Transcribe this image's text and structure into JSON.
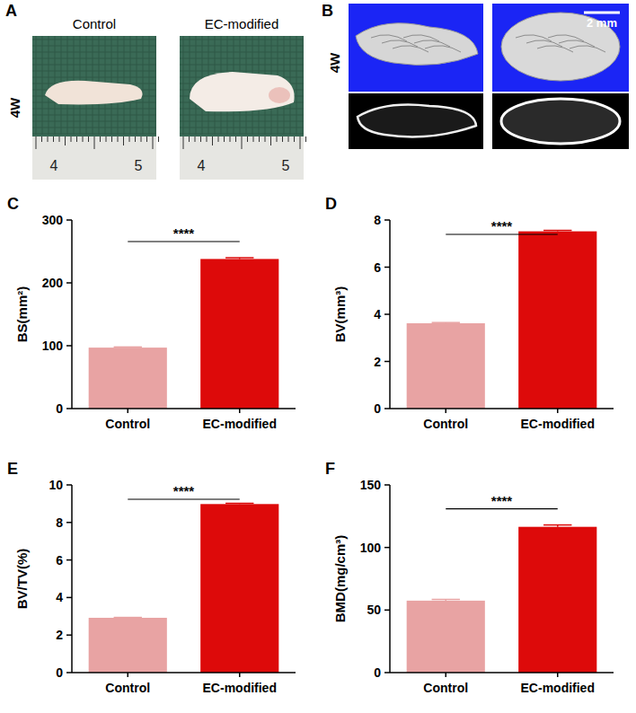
{
  "panel_a": {
    "panel": "A",
    "time": "4W",
    "images": [
      {
        "label": "Control",
        "ruler": [
          "4",
          "5"
        ]
      },
      {
        "label": "EC-modified",
        "ruler": [
          "4",
          "5"
        ]
      }
    ]
  },
  "panel_b": {
    "panel": "B",
    "time": "4W",
    "scale_bar": "2 mm"
  },
  "chart_data": [
    {
      "type": "bar",
      "panel": "C",
      "y_label": "BS(mm²)",
      "categories": [
        "Control",
        "EC-modified"
      ],
      "values": [
        97,
        238
      ],
      "errors": [
        1,
        2
      ],
      "colors": [
        "#e8a3a3",
        "#dd0a0a"
      ],
      "ylim": [
        0,
        300
      ],
      "yticks": [
        0,
        100,
        200,
        300
      ],
      "annotations": [
        "****"
      ]
    },
    {
      "type": "bar",
      "panel": "D",
      "y_label": "BV(mm³)",
      "categories": [
        "Control",
        "EC-modified"
      ],
      "values": [
        3.62,
        7.52
      ],
      "errors": [
        0.03,
        0.04
      ],
      "colors": [
        "#e8a3a3",
        "#dd0a0a"
      ],
      "ylim": [
        0,
        8
      ],
      "yticks": [
        0,
        2,
        4,
        6,
        8
      ],
      "annotations": [
        "****"
      ]
    },
    {
      "type": "bar",
      "panel": "E",
      "y_label": "BV/TV(%)",
      "categories": [
        "Control",
        "EC-modified"
      ],
      "values": [
        2.92,
        8.98
      ],
      "errors": [
        0.02,
        0.04
      ],
      "colors": [
        "#e8a3a3",
        "#dd0a0a"
      ],
      "ylim": [
        0,
        10
      ],
      "yticks": [
        0,
        2,
        4,
        6,
        8,
        10
      ],
      "annotations": [
        "****"
      ]
    },
    {
      "type": "bar",
      "panel": "F",
      "y_label": "BMD(mg/cm³)",
      "categories": [
        "Control",
        "EC-modified"
      ],
      "values": [
        57.5,
        116.5
      ],
      "errors": [
        1,
        1.5
      ],
      "colors": [
        "#e8a3a3",
        "#dd0a0a"
      ],
      "ylim": [
        0,
        150
      ],
      "yticks": [
        0,
        50,
        100,
        150
      ],
      "annotations": [
        "****"
      ]
    }
  ]
}
